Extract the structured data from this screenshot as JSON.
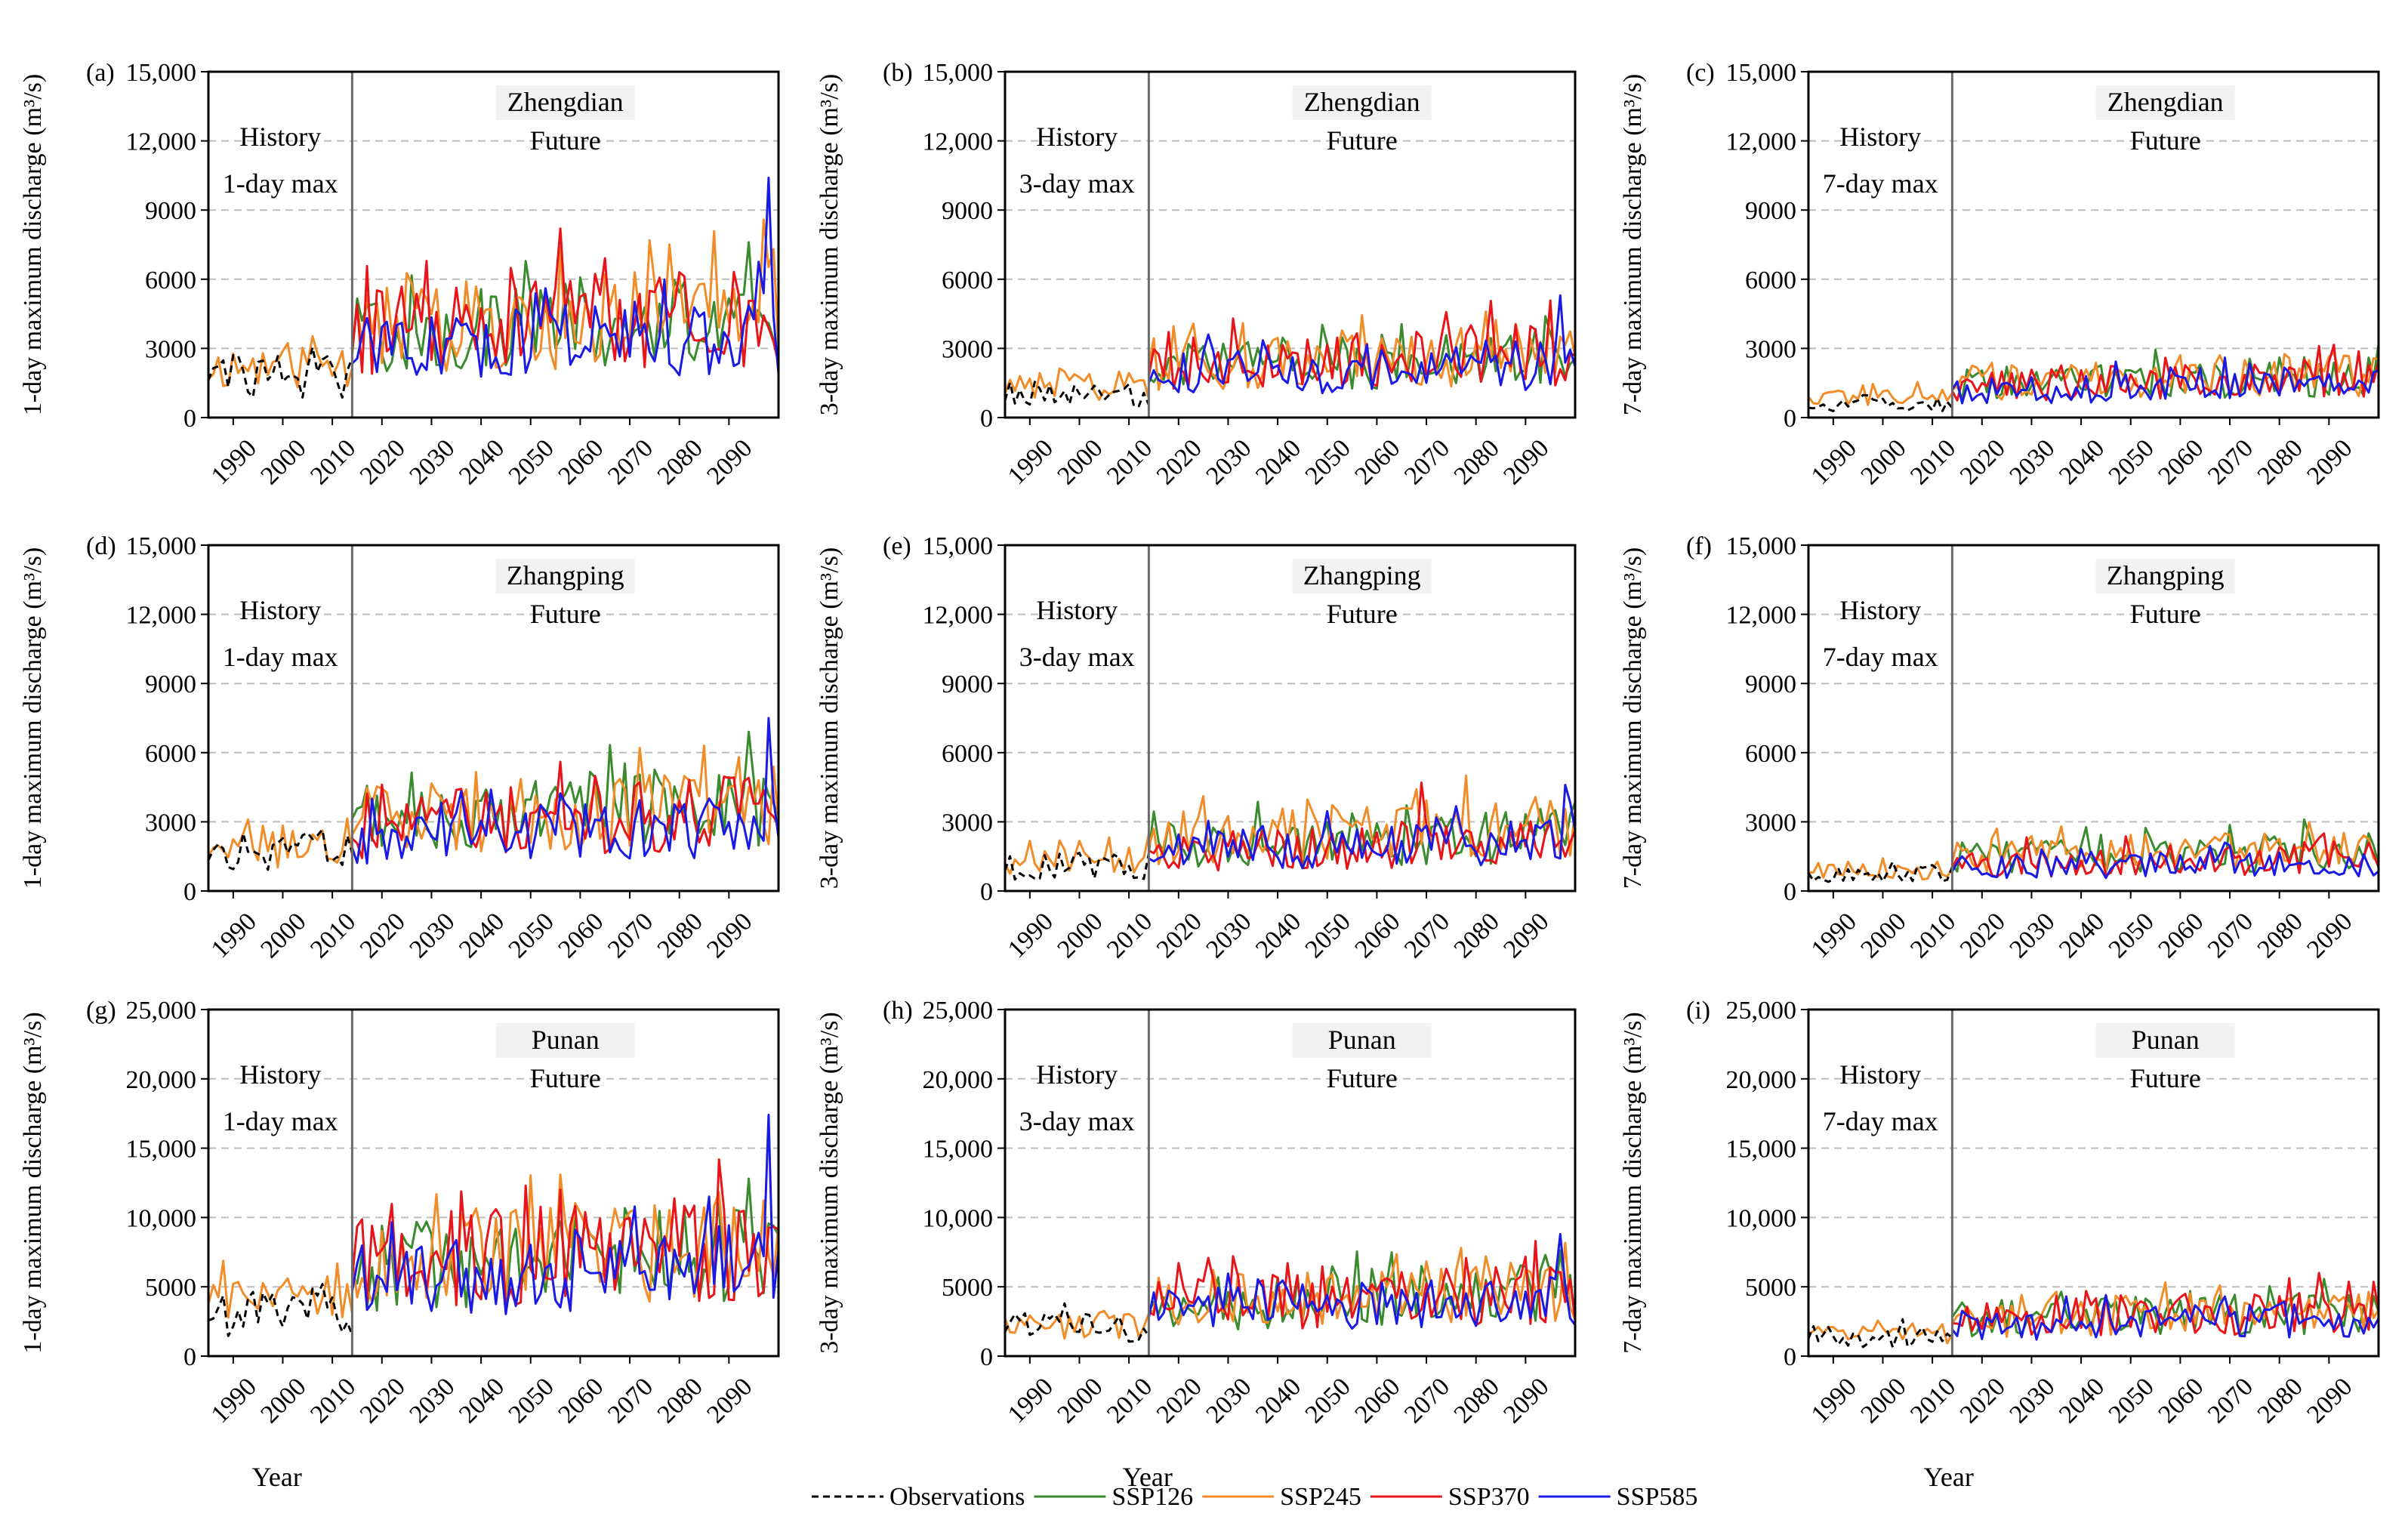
{
  "chart_data": {
    "type": "line",
    "x_range": [
      1985,
      2100
    ],
    "history_end": 2014,
    "x_ticks": [
      1990,
      2000,
      2010,
      2020,
      2030,
      2040,
      2050,
      2060,
      2070,
      2080,
      2090
    ],
    "xlabel": "Year",
    "legend": [
      {
        "key": "obs",
        "label": "Observations",
        "color": "#000000",
        "dashed": true
      },
      {
        "key": "ssp126",
        "label": "SSP126",
        "color": "#3a8a2e"
      },
      {
        "key": "ssp245",
        "label": "SSP245",
        "color": "#f28c28"
      },
      {
        "key": "ssp370",
        "label": "SSP370",
        "color": "#e8141a"
      },
      {
        "key": "ssp585",
        "label": "SSP585",
        "color": "#1a1ae6"
      }
    ],
    "panels": [
      {
        "id": "(a)",
        "station": "Zhengdian",
        "history_label": "History",
        "future_label": "Future",
        "duration_label": "1-day max",
        "ylabel": "1-day maximum discharge (m³/s)",
        "ylim": [
          0,
          15000
        ],
        "yticks": [
          "0",
          "3000",
          "6000",
          "9000",
          "12,000",
          "15,000"
        ],
        "show_xlabel": false,
        "levels": {
          "obs": 1800,
          "ssp126": 3500,
          "ssp245": 3800,
          "ssp370": 3700,
          "ssp585": 3000
        },
        "peaks": {
          "ssp126": [
            2094,
            7600
          ],
          "ssp245": [
            2056,
            7400
          ],
          "ssp370": [
            2056,
            8200
          ],
          "ssp585": [
            2098,
            10400
          ]
        }
      },
      {
        "id": "(b)",
        "station": "Zhengdian",
        "history_label": "History",
        "future_label": "Future",
        "duration_label": "3-day max",
        "ylabel": "3-day maximum discharge (m³/s)",
        "ylim": [
          0,
          15000
        ],
        "yticks": [
          "0",
          "3000",
          "6000",
          "9000",
          "12,000",
          "15,000"
        ],
        "show_xlabel": false,
        "levels": {
          "obs": 1000,
          "ssp126": 2200,
          "ssp245": 2300,
          "ssp370": 2300,
          "ssp585": 1900
        },
        "peaks": {
          "ssp126": [
            2094,
            4400
          ],
          "ssp245": [
            2082,
            4600
          ],
          "ssp370": [
            2031,
            4300
          ],
          "ssp585": [
            2097,
            5300
          ]
        }
      },
      {
        "id": "(c)",
        "station": "Zhengdian",
        "history_label": "History",
        "future_label": "Future",
        "duration_label": "7-day max",
        "ylabel": "7-day maximum discharge (m³/s)",
        "ylim": [
          0,
          15000
        ],
        "yticks": [
          "0",
          "3000",
          "6000",
          "9000",
          "12,000",
          "15,000"
        ],
        "show_xlabel": false,
        "levels": {
          "obs": 550,
          "ssp126": 1500,
          "ssp245": 1500,
          "ssp370": 1450,
          "ssp585": 1200
        },
        "peaks": {
          "ssp126": [
            2098,
            2600
          ],
          "ssp245": [
            2068,
            2700
          ],
          "ssp370": [
            2088,
            3100
          ],
          "ssp585": [
            2069,
            2600
          ]
        }
      },
      {
        "id": "(d)",
        "station": "Zhangping",
        "history_label": "History",
        "future_label": "Future",
        "duration_label": "1-day max",
        "ylabel": "1-day maximum discharge (m³/s)",
        "ylim": [
          0,
          15000
        ],
        "yticks": [
          "0",
          "3000",
          "6000",
          "9000",
          "12,000",
          "15,000"
        ],
        "show_xlabel": false,
        "levels": {
          "obs": 1700,
          "ssp126": 3100,
          "ssp245": 3000,
          "ssp370": 2800,
          "ssp585": 2300
        },
        "peaks": {
          "ssp126": [
            2094,
            6900
          ],
          "ssp245": [
            2085,
            6300
          ],
          "ssp370": [
            2056,
            5600
          ],
          "ssp585": [
            2098,
            7500
          ]
        }
      },
      {
        "id": "(e)",
        "station": "Zhangping",
        "history_label": "History",
        "future_label": "Future",
        "duration_label": "3-day max",
        "ylabel": "3-day maximum discharge (m³/s)",
        "ylim": [
          0,
          15000
        ],
        "yticks": [
          "0",
          "3000",
          "6000",
          "9000",
          "12,000",
          "15,000"
        ],
        "show_xlabel": false,
        "levels": {
          "obs": 1100,
          "ssp126": 2000,
          "ssp245": 2300,
          "ssp370": 1700,
          "ssp585": 1700
        },
        "peaks": {
          "ssp126": [
            2096,
            3500
          ],
          "ssp245": [
            2078,
            5000
          ],
          "ssp370": [
            2069,
            4700
          ],
          "ssp585": [
            2098,
            4600
          ]
        }
      },
      {
        "id": "(f)",
        "station": "Zhangping",
        "history_label": "History",
        "future_label": "Future",
        "duration_label": "7-day max",
        "ylabel": "7-day maximum discharge (m³/s)",
        "ylim": [
          0,
          15000
        ],
        "yticks": [
          "0",
          "3000",
          "6000",
          "9000",
          "12,000",
          "15,000"
        ],
        "show_xlabel": false,
        "levels": {
          "obs": 750,
          "ssp126": 1400,
          "ssp245": 1500,
          "ssp370": 1200,
          "ssp585": 1000
        },
        "peaks": {
          "ssp126": [
            2098,
            2500
          ],
          "ssp245": [
            2069,
            2500
          ],
          "ssp370": [
            2088,
            2300
          ],
          "ssp585": [
            2069,
            2100
          ]
        }
      },
      {
        "id": "(g)",
        "station": "Punan",
        "history_label": "History",
        "future_label": "Future",
        "duration_label": "1-day max",
        "ylabel": "1-day maximum discharge (m³/s)",
        "ylim": [
          0,
          25000
        ],
        "yticks": [
          "0",
          "5000",
          "10,000",
          "15,000",
          "20,000",
          "25,000"
        ],
        "show_xlabel": true,
        "levels": {
          "obs": 3000,
          "ssp126": 6300,
          "ssp245": 6800,
          "ssp370": 6600,
          "ssp585": 5500
        },
        "peaks": {
          "ssp126": [
            2094,
            12800
          ],
          "ssp245": [
            2056,
            13100
          ],
          "ssp370": [
            2056,
            12000
          ],
          "ssp585": [
            2098,
            17400
          ]
        }
      },
      {
        "id": "(h)",
        "station": "Punan",
        "history_label": "History",
        "future_label": "Future",
        "duration_label": "3-day max",
        "ylabel": "3-day maximum discharge (m³/s)",
        "ylim": [
          0,
          25000
        ],
        "yticks": [
          "0",
          "5000",
          "10,000",
          "15,000",
          "20,000",
          "25,000"
        ],
        "show_xlabel": true,
        "levels": {
          "obs": 2000,
          "ssp126": 3700,
          "ssp245": 3800,
          "ssp370": 3700,
          "ssp585": 3200
        },
        "peaks": {
          "ssp126": [
            2094,
            7300
          ],
          "ssp245": [
            2082,
            7200
          ],
          "ssp370": [
            2031,
            7200
          ],
          "ssp585": [
            2097,
            8800
          ]
        }
      },
      {
        "id": "(i)",
        "station": "Punan",
        "history_label": "History",
        "future_label": "Future",
        "duration_label": "7-day max",
        "ylabel": "7-day maximum discharge (m³/s)",
        "ylim": [
          0,
          25000
        ],
        "yticks": [
          "0",
          "5000",
          "10,000",
          "15,000",
          "20,000",
          "25,000"
        ],
        "show_xlabel": true,
        "levels": {
          "obs": 1400,
          "ssp126": 2600,
          "ssp245": 2700,
          "ssp370": 2700,
          "ssp585": 2200
        },
        "peaks": {
          "ssp126": [
            2094,
            4400
          ],
          "ssp245": [
            2068,
            5100
          ],
          "ssp370": [
            2088,
            6000
          ],
          "ssp585": [
            2069,
            4300
          ]
        }
      }
    ]
  }
}
